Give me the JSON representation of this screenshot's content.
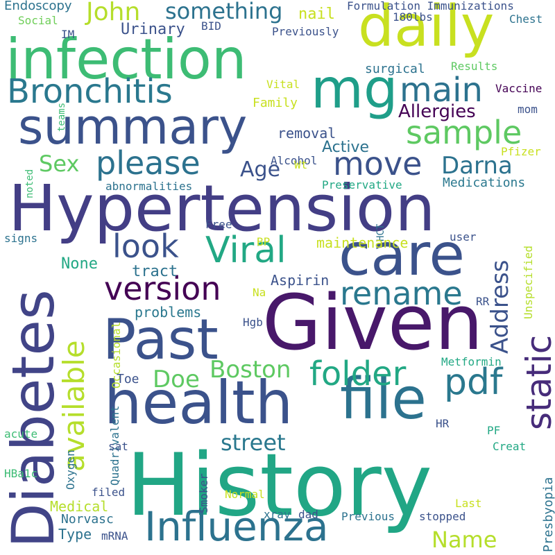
{
  "words": [
    {
      "text": "History",
      "color": "#21a685"
    },
    {
      "text": "Hypertension",
      "color": "#433e85"
    },
    {
      "text": "Given",
      "color": "#48186a"
    },
    {
      "text": "infection",
      "color": "#3dbc74"
    },
    {
      "text": "Diabetes",
      "color": "#414487"
    },
    {
      "text": "summary",
      "color": "#3b528b"
    },
    {
      "text": "health",
      "color": "#3b528b"
    },
    {
      "text": "care",
      "color": "#3b528b"
    },
    {
      "text": "Past",
      "color": "#3b528b"
    },
    {
      "text": "daily",
      "color": "#c8e020"
    },
    {
      "text": "mg",
      "color": "#1f9e89"
    },
    {
      "text": "file",
      "color": "#2c728e"
    },
    {
      "text": "Influenza",
      "color": "#2c728e"
    },
    {
      "text": "Bronchitis",
      "color": "#2a788e"
    },
    {
      "text": "main",
      "color": "#2c728e"
    },
    {
      "text": "sample",
      "color": "#5ec962"
    },
    {
      "text": "please",
      "color": "#2c728e"
    },
    {
      "text": "version",
      "color": "#440154"
    },
    {
      "text": "Viral",
      "color": "#22a884"
    },
    {
      "text": "look",
      "color": "#3b528b"
    },
    {
      "text": "folder",
      "color": "#22a884"
    },
    {
      "text": "pdf",
      "color": "#2a788e"
    },
    {
      "text": "move",
      "color": "#3b528b"
    },
    {
      "text": "rename",
      "color": "#2a788e"
    },
    {
      "text": "static",
      "color": "#472c7a"
    },
    {
      "text": "available",
      "color": "#b5de2b"
    },
    {
      "text": "something",
      "color": "#2c728e"
    },
    {
      "text": "John",
      "color": "#b5de2b"
    },
    {
      "text": "Darna",
      "color": "#2c728e"
    },
    {
      "text": "Boston",
      "color": "#5ec962"
    },
    {
      "text": "street",
      "color": "#2a788e"
    },
    {
      "text": "Address",
      "color": "#3b528b"
    },
    {
      "text": "Doe",
      "color": "#5ec962"
    },
    {
      "text": "Name",
      "color": "#b5de2b"
    },
    {
      "text": "Age",
      "color": "#3b528b"
    },
    {
      "text": "Sex",
      "color": "#5ec962"
    },
    {
      "text": "Allergies",
      "color": "#440154"
    },
    {
      "text": "Active",
      "color": "#2c728e"
    },
    {
      "text": "Endoscopy",
      "color": "#2c728e"
    },
    {
      "text": "Formulation Immunizations",
      "color": "#3b528b"
    },
    {
      "text": "Social",
      "color": "#6ece58"
    },
    {
      "text": "IM",
      "color": "#3b528b"
    },
    {
      "text": "Urinary",
      "color": "#3b528b"
    },
    {
      "text": "BID",
      "color": "#3b528b"
    },
    {
      "text": "nail",
      "color": "#c8e020"
    },
    {
      "text": "180lbs",
      "color": "#3b528b"
    },
    {
      "text": "Chest",
      "color": "#2c728e"
    },
    {
      "text": "Previously",
      "color": "#3b528b"
    },
    {
      "text": "surgical",
      "color": "#2c728e"
    },
    {
      "text": "Results",
      "color": "#5ec962"
    },
    {
      "text": "Vital",
      "color": "#c8e020"
    },
    {
      "text": "Vaccine",
      "color": "#440154"
    },
    {
      "text": "Family",
      "color": "#c8e020"
    },
    {
      "text": "mom",
      "color": "#3b528b"
    },
    {
      "text": "removal",
      "color": "#3b528b"
    },
    {
      "text": "Alcohol",
      "color": "#3b528b"
    },
    {
      "text": "Wt",
      "color": "#c8e020"
    },
    {
      "text": "Pfizer",
      "color": "#c8e020"
    },
    {
      "text": "teams",
      "color": "#3dbc74"
    },
    {
      "text": "noted",
      "color": "#3dbc74"
    },
    {
      "text": "abnormalities",
      "color": "#2c728e"
    },
    {
      "text": "Preservative",
      "color": "#22a884"
    },
    {
      "text": "Medications",
      "color": "#2a788e"
    },
    {
      "text": "Free",
      "color": "#3b528b"
    },
    {
      "text": "HCT",
      "color": "#2c728e"
    },
    {
      "text": "signs",
      "color": "#2c728e"
    },
    {
      "text": "BP",
      "color": "#c8e020"
    },
    {
      "text": "maintenance",
      "color": "#c8e020"
    },
    {
      "text": "user",
      "color": "#3b528b"
    },
    {
      "text": "Unspecified",
      "color": "#b5de2b"
    },
    {
      "text": "None",
      "color": "#22a884"
    },
    {
      "text": "tract",
      "color": "#2c728e"
    },
    {
      "text": "Aspirin",
      "color": "#3b528b"
    },
    {
      "text": "Occasional",
      "color": "#b5de2b"
    },
    {
      "text": "Na",
      "color": "#c8e020"
    },
    {
      "text": "RR",
      "color": "#3b528b"
    },
    {
      "text": "problems",
      "color": "#2a788e"
    },
    {
      "text": "Hgb",
      "color": "#3b528b"
    },
    {
      "text": "Metformin",
      "color": "#22a884"
    },
    {
      "text": "Toe",
      "color": "#3b528b"
    },
    {
      "text": "Quadrivalent",
      "color": "#2c728e"
    },
    {
      "text": "PF",
      "color": "#22a884"
    },
    {
      "text": "acute",
      "color": "#3dbc74"
    },
    {
      "text": "HR",
      "color": "#3b528b"
    },
    {
      "text": "sat",
      "color": "#3b528b"
    },
    {
      "text": "Creat",
      "color": "#22a884"
    },
    {
      "text": "Oxygen",
      "color": "#2c728e"
    },
    {
      "text": "Presbyopia",
      "color": "#2c728e"
    },
    {
      "text": "HBa1c",
      "color": "#3dbc74"
    },
    {
      "text": "filed",
      "color": "#3b528b"
    },
    {
      "text": "Smoker",
      "color": "#3b528b"
    },
    {
      "text": "Normal",
      "color": "#c8e020"
    },
    {
      "text": "Last",
      "color": "#c8e020"
    },
    {
      "text": "Medical",
      "color": "#b5de2b"
    },
    {
      "text": "Norvasc",
      "color": "#2c728e"
    },
    {
      "text": "xray",
      "color": "#2c728e"
    },
    {
      "text": "dad",
      "color": "#3b528b"
    },
    {
      "text": "Previous",
      "color": "#2c728e"
    },
    {
      "text": "stopped",
      "color": "#3b528b"
    },
    {
      "text": "Type",
      "color": "#2c728e"
    },
    {
      "text": "mRNA",
      "color": "#3b528b"
    }
  ]
}
